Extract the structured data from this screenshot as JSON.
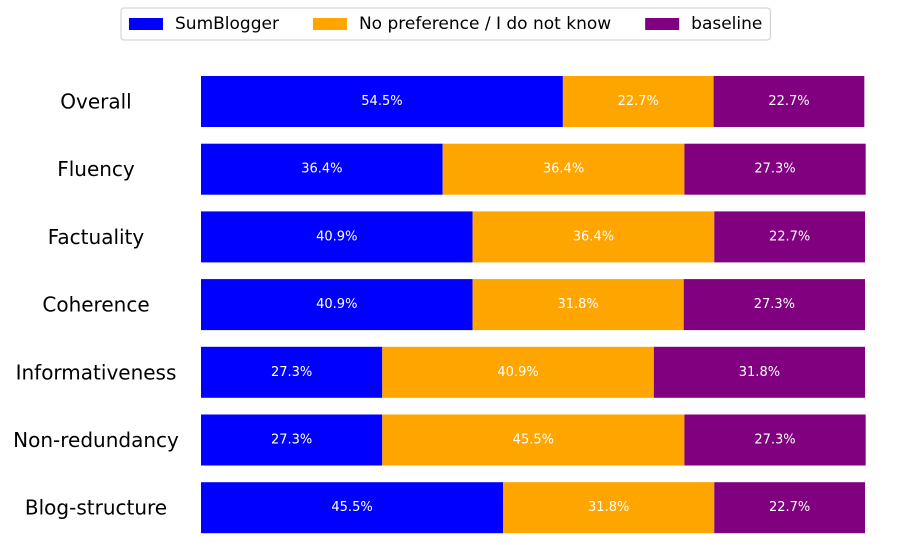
{
  "chart_data": {
    "type": "bar",
    "orientation": "horizontal",
    "stacked": true,
    "normalized": true,
    "categories": [
      "Overall",
      "Fluency",
      "Factuality",
      "Coherence",
      "Informativeness",
      "Non-redundancy",
      "Blog-structure"
    ],
    "series": [
      {
        "name": "SumBlogger",
        "color": "#0000ff",
        "values": [
          54.5,
          36.4,
          40.9,
          40.9,
          27.3,
          27.3,
          45.5
        ]
      },
      {
        "name": "No preference / I do not know",
        "color": "#ffa500",
        "values": [
          22.7,
          36.4,
          36.4,
          31.8,
          40.9,
          45.5,
          31.8
        ]
      },
      {
        "name": "baseline",
        "color": "#800080",
        "values": [
          22.7,
          27.3,
          22.7,
          27.3,
          31.8,
          27.3,
          22.7
        ]
      }
    ],
    "value_suffix": "%",
    "xlim": [
      0,
      100
    ],
    "grid": false,
    "legend_position": "top-center"
  }
}
